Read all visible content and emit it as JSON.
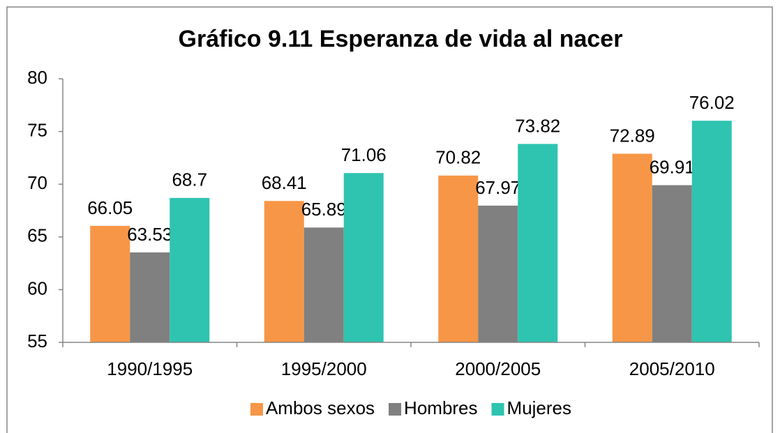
{
  "chart_data": {
    "type": "bar",
    "title": "Gráfico 9.11 Esperanza de vida al nacer",
    "categories": [
      "1990/1995",
      "1995/2000",
      "2000/2005",
      "2005/2010"
    ],
    "series": [
      {
        "name": "Ambos sexos",
        "color": "#f79646",
        "values": [
          66.05,
          68.41,
          70.82,
          72.89
        ]
      },
      {
        "name": "Hombres",
        "color": "#808080",
        "values": [
          63.53,
          65.89,
          67.97,
          69.91
        ]
      },
      {
        "name": "Mujeres",
        "color": "#2ec4b0",
        "values": [
          68.7,
          71.06,
          73.82,
          76.02
        ]
      }
    ],
    "ylim": [
      55,
      80
    ],
    "yticks": [
      55,
      60,
      65,
      70,
      75,
      80
    ],
    "grid": false,
    "legend": "bottom"
  }
}
